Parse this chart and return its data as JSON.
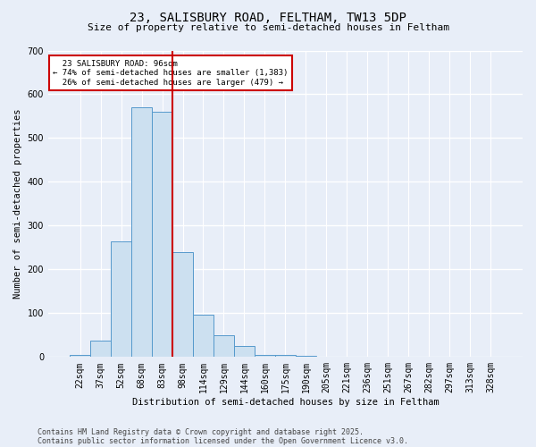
{
  "title_line1": "23, SALISBURY ROAD, FELTHAM, TW13 5DP",
  "title_line2": "Size of property relative to semi-detached houses in Feltham",
  "xlabel": "Distribution of semi-detached houses by size in Feltham",
  "ylabel": "Number of semi-detached properties",
  "bar_labels": [
    "22sqm",
    "37sqm",
    "52sqm",
    "68sqm",
    "83sqm",
    "98sqm",
    "114sqm",
    "129sqm",
    "144sqm",
    "160sqm",
    "175sqm",
    "190sqm",
    "205sqm",
    "221sqm",
    "236sqm",
    "251sqm",
    "267sqm",
    "282sqm",
    "297sqm",
    "313sqm",
    "328sqm"
  ],
  "bar_values": [
    5,
    37,
    265,
    570,
    560,
    240,
    96,
    50,
    25,
    5,
    5,
    2,
    0,
    0,
    0,
    0,
    0,
    0,
    0,
    0,
    0
  ],
  "bar_color": "#cce0f0",
  "bar_edge_color": "#5599cc",
  "property_label": "23 SALISBURY ROAD: 96sqm",
  "pct_smaller": 74,
  "pct_smaller_count": 1383,
  "pct_larger": 26,
  "pct_larger_count": 479,
  "vline_color": "#cc0000",
  "vline_x": 4.5,
  "ylim": [
    0,
    700
  ],
  "yticks": [
    0,
    100,
    200,
    300,
    400,
    500,
    600,
    700
  ],
  "footnote_line1": "Contains HM Land Registry data © Crown copyright and database right 2025.",
  "footnote_line2": "Contains public sector information licensed under the Open Government Licence v3.0.",
  "background_color": "#e8eef8",
  "annotation_box_color": "#ffffff",
  "annotation_box_edge": "#cc0000",
  "title_fontsize": 10,
  "subtitle_fontsize": 8,
  "label_fontsize": 7.5,
  "tick_fontsize": 7,
  "footnote_fontsize": 6
}
